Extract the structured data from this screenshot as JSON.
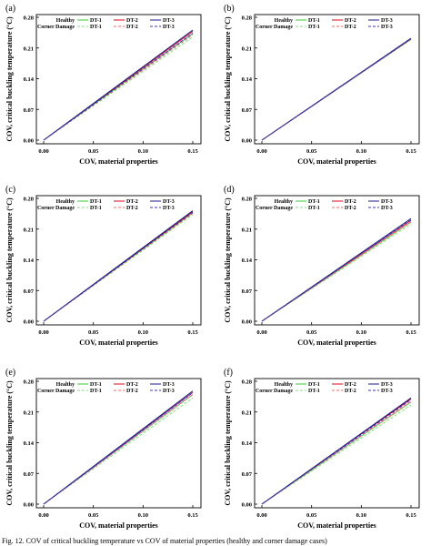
{
  "figure": {
    "caption": "Fig. 12. COV of critical buckling temperature vs COV of material properties (healthy and corner damage cases)"
  },
  "chart_data": [
    {
      "panel": "(a)",
      "type": "line",
      "xlabel": "COV, material properties",
      "ylabel": "COV, critical buckling temperature (°C)",
      "xlim": [
        0.0,
        0.15
      ],
      "ylim": [
        0.0,
        0.28
      ],
      "xticks": [
        "0.00",
        "0.05",
        "0.10",
        "0.15"
      ],
      "yticks": [
        "0.00",
        "0.07",
        "0.14",
        "0.21",
        "0.28"
      ],
      "legend": {
        "placement": "top-left",
        "row_labels": [
          "Healthy",
          "Corner Damage"
        ],
        "entries": [
          "DT-1",
          "DT-2",
          "DT-3"
        ]
      },
      "series": [
        {
          "name": "Healthy DT-1",
          "color": "#33cc33",
          "dash": "solid",
          "x": [
            0.0,
            0.15
          ],
          "y": [
            0.0,
            0.243
          ]
        },
        {
          "name": "Healthy DT-2",
          "color": "#e8001c",
          "dash": "solid",
          "x": [
            0.0,
            0.15
          ],
          "y": [
            0.0,
            0.248
          ]
        },
        {
          "name": "Healthy DT-3",
          "color": "#1a1a8c",
          "dash": "solid",
          "x": [
            0.0,
            0.15
          ],
          "y": [
            0.0,
            0.251
          ]
        },
        {
          "name": "Corner Damage DT-1",
          "color": "#80e080",
          "dash": "dashed",
          "x": [
            0.0,
            0.15
          ],
          "y": [
            0.0,
            0.235
          ]
        },
        {
          "name": "Corner Damage DT-2",
          "color": "#ff6666",
          "dash": "dashed",
          "x": [
            0.0,
            0.15
          ],
          "y": [
            0.0,
            0.24
          ]
        },
        {
          "name": "Corner Damage DT-3",
          "color": "#3333cc",
          "dash": "dashed",
          "x": [
            0.0,
            0.15
          ],
          "y": [
            0.0,
            0.244
          ]
        }
      ]
    },
    {
      "panel": "(b)",
      "type": "line",
      "xlabel": "COV, material properties",
      "ylabel": "COV, critical buckling temperature (°C)",
      "xlim": [
        0.0,
        0.15
      ],
      "ylim": [
        0.0,
        0.28
      ],
      "xticks": [
        "0.00",
        "0.05",
        "0.10",
        "0.15"
      ],
      "yticks": [
        "0.00",
        "0.07",
        "0.14",
        "0.21",
        "0.28"
      ],
      "legend": {
        "placement": "top-left",
        "row_labels": [
          "Healthy",
          "Corner Damage"
        ],
        "entries": [
          "DT-1",
          "DT-2",
          "DT-3"
        ]
      },
      "series": [
        {
          "name": "Healthy DT-1",
          "color": "#33cc33",
          "dash": "solid",
          "x": [
            0.0,
            0.15
          ],
          "y": [
            0.0,
            0.23
          ]
        },
        {
          "name": "Healthy DT-2",
          "color": "#e8001c",
          "dash": "solid",
          "x": [
            0.0,
            0.15
          ],
          "y": [
            0.0,
            0.231
          ]
        },
        {
          "name": "Healthy DT-3",
          "color": "#1a1a8c",
          "dash": "solid",
          "x": [
            0.0,
            0.15
          ],
          "y": [
            0.0,
            0.232
          ]
        },
        {
          "name": "Corner Damage DT-1",
          "color": "#80e080",
          "dash": "dashed",
          "x": [
            0.0,
            0.15
          ],
          "y": [
            0.0,
            0.229
          ]
        },
        {
          "name": "Corner Damage DT-2",
          "color": "#ff6666",
          "dash": "dashed",
          "x": [
            0.0,
            0.15
          ],
          "y": [
            0.0,
            0.23
          ]
        },
        {
          "name": "Corner Damage DT-3",
          "color": "#3333cc",
          "dash": "dashed",
          "x": [
            0.0,
            0.15
          ],
          "y": [
            0.0,
            0.231
          ]
        }
      ]
    },
    {
      "panel": "(c)",
      "type": "line",
      "xlabel": "COV, material properties",
      "ylabel": "COV, critical buckling temperature (°C)",
      "xlim": [
        0.0,
        0.15
      ],
      "ylim": [
        0.0,
        0.28
      ],
      "xticks": [
        "0.00",
        "0.05",
        "0.10",
        "0.15"
      ],
      "yticks": [
        "0.00",
        "0.07",
        "0.14",
        "0.21",
        "0.28"
      ],
      "legend": {
        "placement": "top-left",
        "row_labels": [
          "Healthy",
          "Corner Damage"
        ],
        "entries": [
          "DT-1",
          "DT-2",
          "DT-3"
        ]
      },
      "series": [
        {
          "name": "Healthy DT-1",
          "color": "#33cc33",
          "dash": "solid",
          "x": [
            0.0,
            0.15
          ],
          "y": [
            0.0,
            0.247
          ]
        },
        {
          "name": "Healthy DT-2",
          "color": "#e8001c",
          "dash": "solid",
          "x": [
            0.0,
            0.15
          ],
          "y": [
            0.0,
            0.25
          ]
        },
        {
          "name": "Healthy DT-3",
          "color": "#1a1a8c",
          "dash": "solid",
          "x": [
            0.0,
            0.15
          ],
          "y": [
            0.0,
            0.252
          ]
        },
        {
          "name": "Corner Damage DT-1",
          "color": "#80e080",
          "dash": "dashed",
          "x": [
            0.0,
            0.15
          ],
          "y": [
            0.0,
            0.243
          ]
        },
        {
          "name": "Corner Damage DT-2",
          "color": "#ff6666",
          "dash": "dashed",
          "x": [
            0.0,
            0.15
          ],
          "y": [
            0.0,
            0.246
          ]
        },
        {
          "name": "Corner Damage DT-3",
          "color": "#3333cc",
          "dash": "dashed",
          "x": [
            0.0,
            0.15
          ],
          "y": [
            0.0,
            0.248
          ]
        }
      ]
    },
    {
      "panel": "(d)",
      "type": "line",
      "xlabel": "COV, material properties",
      "ylabel": "COV, critical buckling temperature (°C)",
      "xlim": [
        0.0,
        0.15
      ],
      "ylim": [
        0.0,
        0.28
      ],
      "xticks": [
        "0.00",
        "0.05",
        "0.10",
        "0.15"
      ],
      "yticks": [
        "0.00",
        "0.07",
        "0.14",
        "0.21",
        "0.28"
      ],
      "legend": {
        "placement": "top-left",
        "row_labels": [
          "Healthy",
          "Corner Damage"
        ],
        "entries": [
          "DT-1",
          "DT-2",
          "DT-3"
        ]
      },
      "series": [
        {
          "name": "Healthy DT-1",
          "color": "#33cc33",
          "dash": "solid",
          "x": [
            0.0,
            0.15
          ],
          "y": [
            0.0,
            0.226
          ]
        },
        {
          "name": "Healthy DT-2",
          "color": "#e8001c",
          "dash": "solid",
          "x": [
            0.0,
            0.15
          ],
          "y": [
            0.0,
            0.23
          ]
        },
        {
          "name": "Healthy DT-3",
          "color": "#1a1a8c",
          "dash": "solid",
          "x": [
            0.0,
            0.15
          ],
          "y": [
            0.0,
            0.234
          ]
        },
        {
          "name": "Corner Damage DT-1",
          "color": "#80e080",
          "dash": "dashed",
          "x": [
            0.0,
            0.15
          ],
          "y": [
            0.0,
            0.222
          ]
        },
        {
          "name": "Corner Damage DT-2",
          "color": "#ff6666",
          "dash": "dashed",
          "x": [
            0.0,
            0.15
          ],
          "y": [
            0.0,
            0.227
          ]
        },
        {
          "name": "Corner Damage DT-3",
          "color": "#3333cc",
          "dash": "dashed",
          "x": [
            0.0,
            0.15
          ],
          "y": [
            0.0,
            0.231
          ]
        }
      ]
    },
    {
      "panel": "(e)",
      "type": "line",
      "xlabel": "COV, material properties",
      "ylabel": "COV, critical buckling temperature (°C)",
      "xlim": [
        0.0,
        0.15
      ],
      "ylim": [
        0.0,
        0.28
      ],
      "xticks": [
        "0.00",
        "0.05",
        "0.10",
        "0.15"
      ],
      "yticks": [
        "0.00",
        "0.07",
        "0.14",
        "0.21",
        "0.28"
      ],
      "legend": {
        "placement": "top-left",
        "row_labels": [
          "Healthy",
          "Corner Damage"
        ],
        "entries": [
          "DT-1",
          "DT-2",
          "DT-3"
        ]
      },
      "series": [
        {
          "name": "Healthy DT-1",
          "color": "#33cc33",
          "dash": "solid",
          "x": [
            0.0,
            0.15
          ],
          "y": [
            0.0,
            0.25
          ]
        },
        {
          "name": "Healthy DT-2",
          "color": "#e8001c",
          "dash": "solid",
          "x": [
            0.0,
            0.15
          ],
          "y": [
            0.0,
            0.255
          ]
        },
        {
          "name": "Healthy DT-3",
          "color": "#1a1a8c",
          "dash": "solid",
          "x": [
            0.0,
            0.15
          ],
          "y": [
            0.0,
            0.258
          ]
        },
        {
          "name": "Corner Damage DT-1",
          "color": "#80e080",
          "dash": "dashed",
          "x": [
            0.0,
            0.15
          ],
          "y": [
            0.0,
            0.242
          ]
        },
        {
          "name": "Corner Damage DT-2",
          "color": "#ff6666",
          "dash": "dashed",
          "x": [
            0.0,
            0.15
          ],
          "y": [
            0.0,
            0.25
          ]
        },
        {
          "name": "Corner Damage DT-3",
          "color": "#3333cc",
          "dash": "dashed",
          "x": [
            0.0,
            0.15
          ],
          "y": [
            0.0,
            0.254
          ]
        }
      ]
    },
    {
      "panel": "(f)",
      "type": "line",
      "xlabel": "COV, material properties",
      "ylabel": "COV, critical buckling temperature (°C)",
      "xlim": [
        0.0,
        0.15
      ],
      "ylim": [
        0.0,
        0.28
      ],
      "xticks": [
        "0.00",
        "0.05",
        "0.10",
        "0.15"
      ],
      "yticks": [
        "0.00",
        "0.07",
        "0.14",
        "0.21",
        "0.28"
      ],
      "legend": {
        "placement": "top-left",
        "row_labels": [
          "Healthy",
          "Corner Damage"
        ],
        "entries": [
          "DT-1",
          "DT-2",
          "DT-3"
        ]
      },
      "series": [
        {
          "name": "Healthy DT-1",
          "color": "#33cc33",
          "dash": "solid",
          "x": [
            0.0,
            0.15
          ],
          "y": [
            0.0,
            0.233
          ]
        },
        {
          "name": "Healthy DT-2",
          "color": "#e8001c",
          "dash": "solid",
          "x": [
            0.0,
            0.15
          ],
          "y": [
            0.0,
            0.24
          ]
        },
        {
          "name": "Healthy DT-3",
          "color": "#1a1a8c",
          "dash": "solid",
          "x": [
            0.0,
            0.15
          ],
          "y": [
            0.0,
            0.242
          ]
        },
        {
          "name": "Corner Damage DT-1",
          "color": "#80e080",
          "dash": "dashed",
          "x": [
            0.0,
            0.15
          ],
          "y": [
            0.0,
            0.226
          ]
        },
        {
          "name": "Corner Damage DT-2",
          "color": "#ff6666",
          "dash": "dashed",
          "x": [
            0.0,
            0.15
          ],
          "y": [
            0.0,
            0.234
          ]
        },
        {
          "name": "Corner Damage DT-3",
          "color": "#3333cc",
          "dash": "dashed",
          "x": [
            0.0,
            0.15
          ],
          "y": [
            0.0,
            0.238
          ]
        }
      ]
    }
  ]
}
